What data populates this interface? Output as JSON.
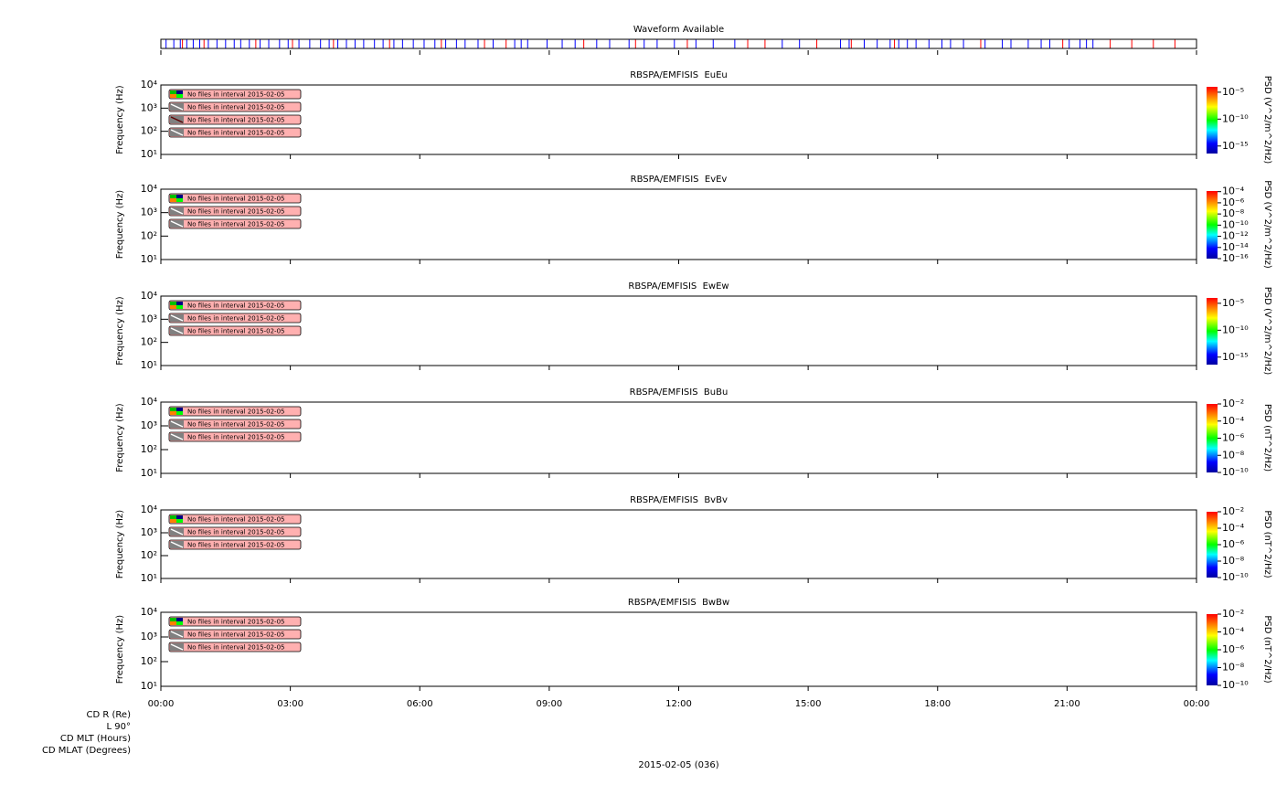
{
  "chart_data": [
    {
      "type": "events",
      "title": "Waveform Available",
      "xlim": [
        0,
        24
      ],
      "series": [
        {
          "color": "#0000ff",
          "x": [
            0.12,
            0.3,
            0.45,
            0.6,
            0.75,
            0.9,
            1.1,
            1.3,
            1.5,
            1.7,
            1.85,
            2.05,
            2.3,
            2.5,
            2.75,
            2.95,
            3.2,
            3.45,
            3.7,
            3.9,
            4.1,
            4.3,
            4.5,
            4.7,
            4.95,
            5.15,
            5.4,
            5.6,
            5.85,
            6.1,
            6.35,
            6.6,
            6.85,
            7.05,
            7.35,
            7.7,
            8.2,
            8.35,
            8.5,
            8.95,
            9.3,
            9.6,
            10.1,
            10.4,
            10.85,
            11.2,
            11.5,
            11.9,
            12.4,
            12.8,
            13.3,
            14.4,
            14.8,
            15.75,
            15.95,
            16.3,
            16.6,
            16.9,
            17.1,
            17.3,
            17.5,
            17.8,
            18.1,
            18.3,
            18.6,
            19.1,
            19.5,
            19.7,
            20.1,
            20.4,
            20.6,
            21.05,
            21.3,
            21.45,
            21.6
          ]
        },
        {
          "color": "#ff0000",
          "x": [
            0.5,
            1.0,
            2.2,
            3.05,
            4.0,
            5.3,
            6.5,
            7.5,
            8.0,
            9.8,
            11.0,
            12.2,
            13.6,
            14.0,
            15.2,
            16.0,
            17.0,
            19.0,
            20.9,
            22.0,
            22.5,
            23.0,
            23.5
          ]
        }
      ]
    },
    {
      "type": "spectrogram",
      "title": "RBSPA/EMFISIS  EuEu",
      "ylabel": "Frequency (Hz)",
      "log": true,
      "xlim": [
        0,
        24
      ],
      "ylim": [
        10,
        10000
      ],
      "yticks": [
        {
          "value": 10,
          "label": "10¹"
        },
        {
          "value": 100,
          "label": "10²"
        },
        {
          "value": 1000,
          "label": "10³"
        },
        {
          "value": 10000,
          "label": "10⁴"
        }
      ],
      "messages": [
        "No files in interval 2015-02-05",
        "No files in interval 2015-02-05",
        "No files in interval 2015-02-05",
        "No files in interval 2015-02-05"
      ],
      "colorbar": {
        "label": "PSD (V^2/m^2/Hz)",
        "log": true,
        "zlim": [
          4e-17,
          0.0001
        ],
        "zticks": [
          {
            "value": 1e-05,
            "label": "10⁻⁵"
          },
          {
            "value": 1e-10,
            "label": "10⁻¹⁰"
          },
          {
            "value": 1e-15,
            "label": "10⁻¹⁵"
          }
        ]
      }
    },
    {
      "type": "spectrogram",
      "title": "RBSPA/EMFISIS  EvEv",
      "ylabel": "Frequency (Hz)",
      "log": true,
      "xlim": [
        0,
        24
      ],
      "ylim": [
        10,
        10000
      ],
      "yticks": [
        {
          "value": 10,
          "label": "10¹"
        },
        {
          "value": 100,
          "label": "10²"
        },
        {
          "value": 1000,
          "label": "10³"
        },
        {
          "value": 10000,
          "label": "10⁴"
        }
      ],
      "messages": [
        "No files in interval 2015-02-05",
        "No files in interval 2015-02-05",
        "No files in interval 2015-02-05"
      ],
      "colorbar": {
        "label": "PSD (V^2/m^2/Hz)",
        "log": true,
        "zlim": [
          1e-16,
          0.00013
        ],
        "zticks": [
          {
            "value": 0.0001,
            "label": "10⁻⁴"
          },
          {
            "value": 1e-06,
            "label": "10⁻⁶"
          },
          {
            "value": 1e-08,
            "label": "10⁻⁸"
          },
          {
            "value": 1e-10,
            "label": "10⁻¹⁰"
          },
          {
            "value": 1e-12,
            "label": "10⁻¹²"
          },
          {
            "value": 1e-14,
            "label": "10⁻¹⁴"
          },
          {
            "value": 1e-16,
            "label": "10⁻¹⁶"
          }
        ]
      }
    },
    {
      "type": "spectrogram",
      "title": "RBSPA/EMFISIS  EwEw",
      "ylabel": "Frequency (Hz)",
      "log": true,
      "xlim": [
        0,
        24
      ],
      "ylim": [
        10,
        10000
      ],
      "yticks": [
        {
          "value": 10,
          "label": "10¹"
        },
        {
          "value": 100,
          "label": "10²"
        },
        {
          "value": 1000,
          "label": "10³"
        },
        {
          "value": 10000,
          "label": "10⁴"
        }
      ],
      "messages": [
        "No files in interval 2015-02-05",
        "No files in interval 2015-02-05",
        "No files in interval 2015-02-05"
      ],
      "colorbar": {
        "label": "PSD (V^2/m^2/Hz)",
        "log": true,
        "zlim": [
          4e-17,
          0.0001
        ],
        "zticks": [
          {
            "value": 1e-05,
            "label": "10⁻⁵"
          },
          {
            "value": 1e-10,
            "label": "10⁻¹⁰"
          },
          {
            "value": 1e-15,
            "label": "10⁻¹⁵"
          }
        ]
      }
    },
    {
      "type": "spectrogram",
      "title": "RBSPA/EMFISIS  BuBu",
      "ylabel": "Frequency (Hz)",
      "log": true,
      "xlim": [
        0,
        24
      ],
      "ylim": [
        10,
        10000
      ],
      "yticks": [
        {
          "value": 10,
          "label": "10¹"
        },
        {
          "value": 100,
          "label": "10²"
        },
        {
          "value": 1000,
          "label": "10³"
        },
        {
          "value": 10000,
          "label": "10⁴"
        }
      ],
      "messages": [
        "No files in interval 2015-02-05",
        "No files in interval 2015-02-05",
        "No files in interval 2015-02-05"
      ],
      "colorbar": {
        "label": "PSD (nT^2/Hz)",
        "log": true,
        "zlim": [
          1e-10,
          0.01
        ],
        "zticks": [
          {
            "value": 0.01,
            "label": "10⁻²"
          },
          {
            "value": 0.0001,
            "label": "10⁻⁴"
          },
          {
            "value": 1e-06,
            "label": "10⁻⁶"
          },
          {
            "value": 1e-08,
            "label": "10⁻⁸"
          },
          {
            "value": 1e-10,
            "label": "10⁻¹⁰"
          }
        ]
      }
    },
    {
      "type": "spectrogram",
      "title": "RBSPA/EMFISIS  BvBv",
      "ylabel": "Frequency (Hz)",
      "log": true,
      "xlim": [
        0,
        24
      ],
      "ylim": [
        10,
        10000
      ],
      "yticks": [
        {
          "value": 10,
          "label": "10¹"
        },
        {
          "value": 100,
          "label": "10²"
        },
        {
          "value": 1000,
          "label": "10³"
        },
        {
          "value": 10000,
          "label": "10⁴"
        }
      ],
      "messages": [
        "No files in interval 2015-02-05",
        "No files in interval 2015-02-05",
        "No files in interval 2015-02-05"
      ],
      "colorbar": {
        "label": "PSD (nT^2/Hz)",
        "log": true,
        "zlim": [
          1e-10,
          0.01
        ],
        "zticks": [
          {
            "value": 0.01,
            "label": "10⁻²"
          },
          {
            "value": 0.0001,
            "label": "10⁻⁴"
          },
          {
            "value": 1e-06,
            "label": "10⁻⁶"
          },
          {
            "value": 1e-08,
            "label": "10⁻⁸"
          },
          {
            "value": 1e-10,
            "label": "10⁻¹⁰"
          }
        ]
      }
    },
    {
      "type": "spectrogram",
      "title": "RBSPA/EMFISIS  BwBw",
      "ylabel": "Frequency (Hz)",
      "log": true,
      "xlim": [
        0,
        24
      ],
      "ylim": [
        10,
        10000
      ],
      "yticks": [
        {
          "value": 10,
          "label": "10¹"
        },
        {
          "value": 100,
          "label": "10²"
        },
        {
          "value": 1000,
          "label": "10³"
        },
        {
          "value": 10000,
          "label": "10⁴"
        }
      ],
      "xticks": [
        {
          "value": 0,
          "label": "00:00"
        },
        {
          "value": 3,
          "label": "03:00"
        },
        {
          "value": 6,
          "label": "06:00"
        },
        {
          "value": 9,
          "label": "09:00"
        },
        {
          "value": 12,
          "label": "12:00"
        },
        {
          "value": 15,
          "label": "15:00"
        },
        {
          "value": 18,
          "label": "18:00"
        },
        {
          "value": 21,
          "label": "21:00"
        },
        {
          "value": 24,
          "label": "00:00"
        }
      ],
      "messages": [
        "No files in interval 2015-02-05",
        "No files in interval 2015-02-05",
        "No files in interval 2015-02-05"
      ],
      "colorbar": {
        "label": "PSD (nT^2/Hz)",
        "log": true,
        "zlim": [
          1e-10,
          0.01
        ],
        "zticks": [
          {
            "value": 0.01,
            "label": "10⁻²"
          },
          {
            "value": 0.0001,
            "label": "10⁻⁴"
          },
          {
            "value": 1e-06,
            "label": "10⁻⁶"
          },
          {
            "value": 1e-08,
            "label": "10⁻⁸"
          },
          {
            "value": 1e-10,
            "label": "10⁻¹⁰"
          }
        ]
      }
    }
  ],
  "footer": {
    "rows": [
      "CD R (Re)",
      "L 90°",
      "CD MLT (Hours)",
      "CD MLAT (Degrees)"
    ],
    "date": "2015-02-05 (036)"
  }
}
